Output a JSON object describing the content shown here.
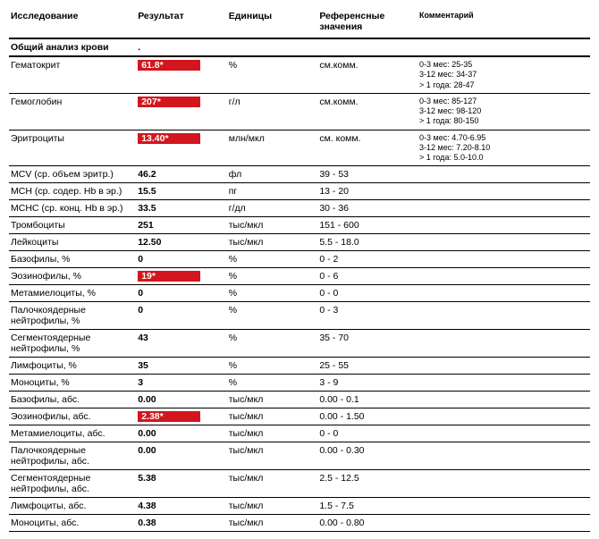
{
  "headers": {
    "test": "Исследование",
    "result": "Результат",
    "units": "Единицы",
    "ref": "Референсные значения",
    "comment": "Комментарий"
  },
  "section": {
    "title": "Общий анализ крови",
    "mark": "."
  },
  "colors": {
    "flag_bg": "#d3161e",
    "flag_text": "#ffffff"
  },
  "rows": [
    {
      "test": "Гематокрит",
      "result": "61.8*",
      "flag": true,
      "units": "%",
      "ref": "см.комм.",
      "comment": [
        "0-3 мес: 25-35",
        "3-12 мес: 34-37",
        "> 1 года: 28-47"
      ]
    },
    {
      "test": "Гемоглобин",
      "result": "207*",
      "flag": true,
      "units": "г/л",
      "ref": "см.комм.",
      "comment": [
        "0-3 мес: 85-127",
        "3-12 мес: 98-120",
        "> 1 года: 80-150"
      ]
    },
    {
      "test": "Эритроциты",
      "result": "13.40*",
      "flag": true,
      "units": "млн/мкл",
      "ref": "см. комм.",
      "comment": [
        "0-3 мес: 4.70-6.95",
        "3-12 мес: 7.20-8.10",
        "> 1 года: 5.0-10.0"
      ]
    },
    {
      "test": "MCV (ср. объем эритр.)",
      "result": "46.2",
      "flag": false,
      "units": "фл",
      "ref": "39 - 53",
      "comment": []
    },
    {
      "test": "MCH (ср. содер. Hb в эр.)",
      "result": "15.5",
      "flag": false,
      "units": "пг",
      "ref": "13 - 20",
      "comment": []
    },
    {
      "test": "MCHC (ср. конц. Hb в эр.)",
      "result": "33.5",
      "flag": false,
      "units": "г/дл",
      "ref": "30 - 36",
      "comment": []
    },
    {
      "test": "Тромбоциты",
      "result": "251",
      "flag": false,
      "units": "тыс/мкл",
      "ref": "151 - 600",
      "comment": []
    },
    {
      "test": "Лейкоциты",
      "result": "12.50",
      "flag": false,
      "units": "тыс/мкл",
      "ref": "5.5 - 18.0",
      "comment": []
    },
    {
      "test": "Базофилы, %",
      "result": "0",
      "flag": false,
      "units": "%",
      "ref": "0 - 2",
      "comment": []
    },
    {
      "test": "Эозинофилы, %",
      "result": "19*",
      "flag": true,
      "units": "%",
      "ref": "0 - 6",
      "comment": []
    },
    {
      "test": "Метамиелоциты, %",
      "result": "0",
      "flag": false,
      "units": "%",
      "ref": "0 - 0",
      "comment": []
    },
    {
      "test": "Палочкоядерные нейтрофилы, %",
      "result": "0",
      "flag": false,
      "units": "%",
      "ref": "0 - 3",
      "comment": []
    },
    {
      "test": "Сегментоядерные нейтрофилы, %",
      "result": "43",
      "flag": false,
      "units": "%",
      "ref": "35 - 70",
      "comment": []
    },
    {
      "test": "Лимфоциты, %",
      "result": "35",
      "flag": false,
      "units": "%",
      "ref": "25 - 55",
      "comment": []
    },
    {
      "test": "Моноциты, %",
      "result": "3",
      "flag": false,
      "units": "%",
      "ref": "3 - 9",
      "comment": []
    },
    {
      "test": "Базофилы, абс.",
      "result": "0.00",
      "flag": false,
      "units": "тыс/мкл",
      "ref": "0.00 - 0.1",
      "comment": []
    },
    {
      "test": "Эозинофилы, абс.",
      "result": "2.38*",
      "flag": true,
      "units": "тыс/мкл",
      "ref": "0.00 - 1.50",
      "comment": []
    },
    {
      "test": "Метамиелоциты, абс.",
      "result": "0.00",
      "flag": false,
      "units": "тыс/мкл",
      "ref": "0 - 0",
      "comment": []
    },
    {
      "test": "Палочкоядерные нейтрофилы, абс.",
      "result": "0.00",
      "flag": false,
      "units": "тыс/мкл",
      "ref": "0.00 - 0.30",
      "comment": []
    },
    {
      "test": "Сегментоядерные нейтрофилы, абс.",
      "result": "5.38",
      "flag": false,
      "units": "тыс/мкл",
      "ref": "2.5 - 12.5",
      "comment": []
    },
    {
      "test": "Лимфоциты, абс.",
      "result": "4.38",
      "flag": false,
      "units": "тыс/мкл",
      "ref": "1.5 - 7.5",
      "comment": []
    },
    {
      "test": "Моноциты, абс.",
      "result": "0.38",
      "flag": false,
      "units": "тыс/мкл",
      "ref": "0.00 - 0.80",
      "comment": []
    }
  ]
}
